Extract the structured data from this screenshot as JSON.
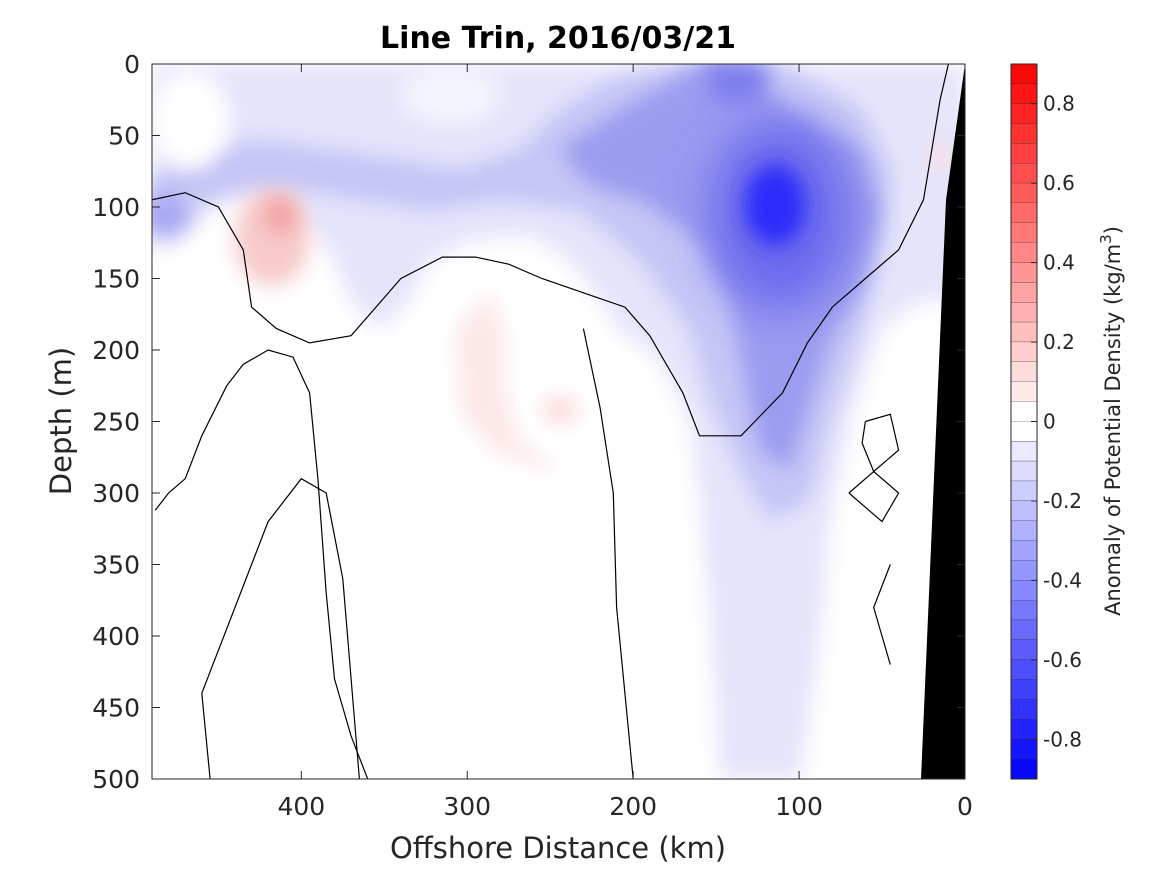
{
  "chart_data": {
    "type": "heatmap",
    "title": "Line Trin, 2016/03/21",
    "xlabel": "Offshore Distance (km)",
    "ylabel": "Depth (m)",
    "xlim": [
      490,
      0
    ],
    "ylim": [
      0,
      500
    ],
    "x_reversed": true,
    "y_reversed": true,
    "x_ticks": [
      400,
      300,
      200,
      100,
      0
    ],
    "y_ticks": [
      0,
      50,
      100,
      150,
      200,
      250,
      300,
      350,
      400,
      450,
      500
    ],
    "colorbar": {
      "label_main": "Anomaly of Potential Density (kg/m",
      "label_sup": "3",
      "label_end": ")",
      "range": [
        -0.9,
        0.9
      ],
      "step": 0.05,
      "ticks": [
        0.8,
        0.6,
        0.4,
        0.2,
        0,
        -0.2,
        -0.4,
        -0.6,
        -0.8
      ],
      "tick_labels": [
        "0.8",
        "0.6",
        "0.4",
        "0.2",
        "0",
        "-0.2",
        "-0.4",
        "-0.6",
        "-0.8"
      ],
      "colormap": "blue-white-red",
      "neg_color": "#0000ff",
      "pos_color": "#ff0000",
      "zero_color": "#ffffff"
    },
    "features": [
      {
        "kind": "negative-anomaly-core",
        "x": 115,
        "depth": 100,
        "value": -0.62
      },
      {
        "kind": "negative-anomaly-secondary",
        "x": 140,
        "depth": 5,
        "value": -0.35
      },
      {
        "kind": "negative-anomaly-tongue",
        "x": 480,
        "depth": 100,
        "value": -0.2
      },
      {
        "kind": "positive-anomaly",
        "x": 410,
        "depth": 105,
        "value": 0.15
      },
      {
        "kind": "positive-anomaly",
        "x": 280,
        "depth": 220,
        "value": 0.05
      },
      {
        "kind": "positive-anomaly",
        "x": 255,
        "depth": 245,
        "value": 0.07
      }
    ],
    "zero_contours": [
      [
        [
          490,
          95
        ],
        [
          470,
          90
        ],
        [
          450,
          100
        ],
        [
          435,
          130
        ],
        [
          430,
          170
        ],
        [
          415,
          185
        ],
        [
          395,
          195
        ],
        [
          370,
          190
        ],
        [
          355,
          170
        ],
        [
          340,
          150
        ],
        [
          315,
          135
        ],
        [
          295,
          135
        ],
        [
          275,
          140
        ],
        [
          255,
          150
        ],
        [
          230,
          160
        ],
        [
          205,
          170
        ],
        [
          190,
          190
        ],
        [
          170,
          230
        ],
        [
          160,
          260
        ],
        [
          135,
          260
        ],
        [
          110,
          230
        ],
        [
          95,
          195
        ],
        [
          80,
          170
        ],
        [
          60,
          150
        ],
        [
          40,
          130
        ],
        [
          25,
          95
        ],
        [
          20,
          60
        ],
        [
          15,
          25
        ],
        [
          10,
          0
        ]
      ],
      [
        [
          455,
          500
        ],
        [
          460,
          440
        ],
        [
          440,
          380
        ],
        [
          420,
          320
        ],
        [
          400,
          290
        ],
        [
          385,
          300
        ],
        [
          375,
          360
        ],
        [
          370,
          430
        ],
        [
          365,
          500
        ]
      ],
      [
        [
          435,
          210
        ],
        [
          420,
          200
        ],
        [
          405,
          205
        ],
        [
          395,
          230
        ],
        [
          390,
          290
        ],
        [
          385,
          370
        ],
        [
          380,
          430
        ],
        [
          370,
          470
        ],
        [
          360,
          500
        ]
      ],
      [
        [
          488,
          312
        ],
        [
          480,
          300
        ],
        [
          470,
          290
        ],
        [
          460,
          260
        ],
        [
          445,
          225
        ],
        [
          435,
          210
        ]
      ],
      [
        [
          200,
          500
        ],
        [
          205,
          440
        ],
        [
          210,
          380
        ],
        [
          212,
          300
        ],
        [
          220,
          240
        ],
        [
          230,
          185
        ]
      ],
      [
        [
          60,
          250
        ],
        [
          45,
          245
        ],
        [
          40,
          270
        ],
        [
          55,
          285
        ],
        [
          62,
          265
        ],
        [
          60,
          250
        ]
      ],
      [
        [
          70,
          300
        ],
        [
          55,
          285
        ],
        [
          40,
          300
        ],
        [
          50,
          320
        ],
        [
          70,
          300
        ]
      ],
      [
        [
          45,
          350
        ],
        [
          55,
          380
        ],
        [
          50,
          400
        ],
        [
          45,
          420
        ]
      ]
    ]
  }
}
